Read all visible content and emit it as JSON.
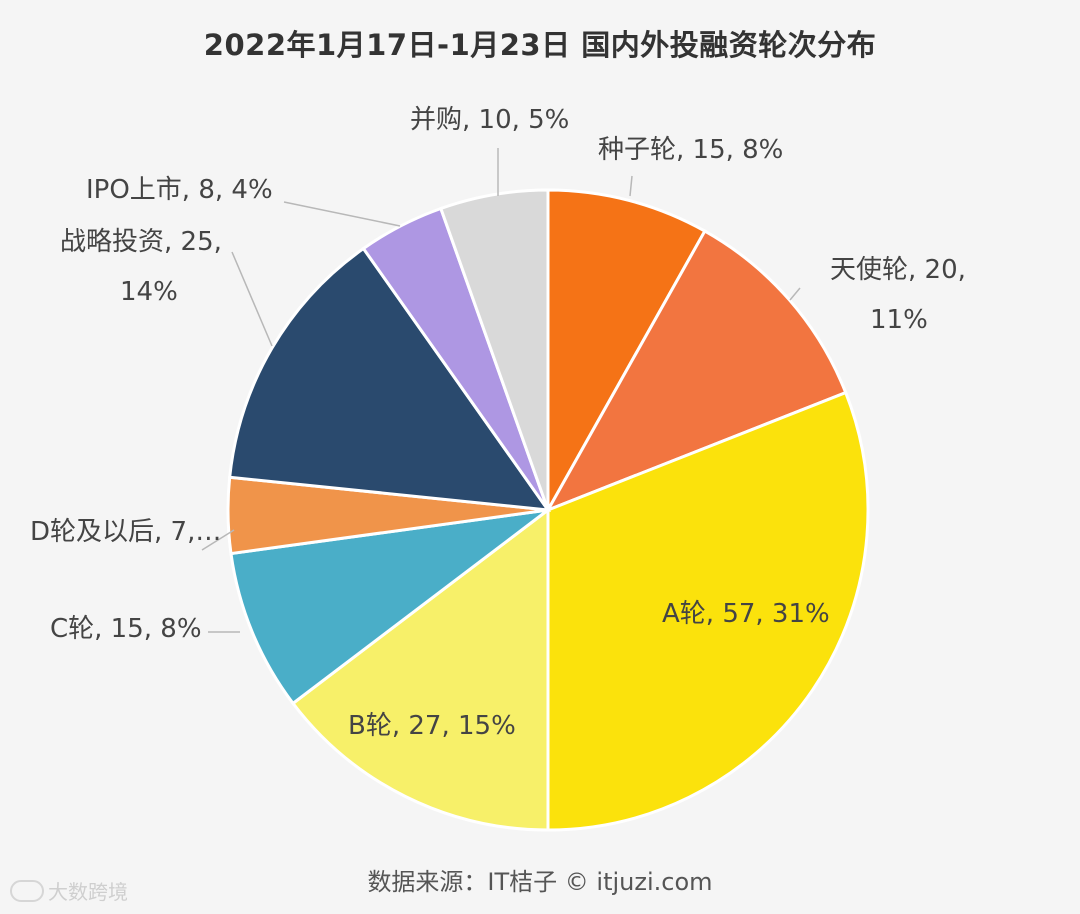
{
  "chart_data": {
    "type": "pie",
    "title": "2022年1月17日-1月23日 国内外投融资轮次分布",
    "start_angle_deg": 0,
    "direction": "clockwise",
    "slices": [
      {
        "name": "种子轮",
        "value": 15,
        "percent": "8%",
        "color": "#f57316",
        "label_lines": [
          "种子轮, 15, 8%"
        ]
      },
      {
        "name": "天使轮",
        "value": 20,
        "percent": "11%",
        "color": "#f27540",
        "label_lines": [
          "天使轮, 20,",
          "11%"
        ]
      },
      {
        "name": "A轮",
        "value": 57,
        "percent": "31%",
        "color": "#fbe20c",
        "label_lines": [
          "A轮, 57, 31%"
        ]
      },
      {
        "name": "B轮",
        "value": 27,
        "percent": "15%",
        "color": "#f7f069",
        "label_lines": [
          "B轮, 27, 15%"
        ]
      },
      {
        "name": "C轮",
        "value": 15,
        "percent": "8%",
        "color": "#4aaec8",
        "label_lines": [
          "C轮, 15, 8%"
        ]
      },
      {
        "name": "D轮及以后",
        "value": 7,
        "percent": "4%",
        "color": "#f0944a",
        "label_lines": [
          "D轮及以后, 7,…"
        ]
      },
      {
        "name": "战略投资",
        "value": 25,
        "percent": "14%",
        "color": "#2a4a6e",
        "label_lines": [
          "战略投资, 25,",
          "14%"
        ]
      },
      {
        "name": "IPO上市",
        "value": 8,
        "percent": "4%",
        "color": "#ae97e3",
        "label_lines": [
          "IPO上市, 8, 4%"
        ]
      },
      {
        "name": "并购",
        "value": 10,
        "percent": "5%",
        "color": "#d9d9d9",
        "label_lines": [
          "并购, 10, 5%"
        ]
      }
    ]
  },
  "footer": {
    "source": "数据来源：IT桔子 © itjuzi.com",
    "watermark": "大数跨境"
  }
}
